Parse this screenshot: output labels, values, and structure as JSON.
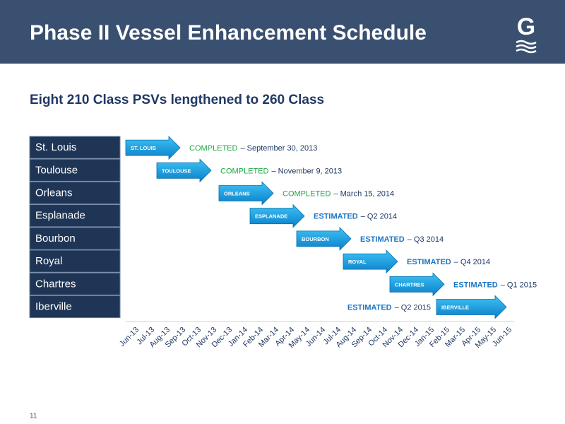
{
  "header": {
    "title": "Phase II Vessel Enhancement Schedule",
    "logo": "G"
  },
  "page_number": "11",
  "chart_data": {
    "type": "gantt",
    "subtitle": "Eight 210 Class PSVs lengthened to 260 Class",
    "categories": [
      "Jun-13",
      "Jul-13",
      "Aug-13",
      "Sep-13",
      "Oct-13",
      "Nov-13",
      "Dec-13",
      "Jan-14",
      "Feb-14",
      "Mar-14",
      "Apr-14",
      "May-14",
      "Jun-14",
      "Jul-14",
      "Aug-14",
      "Sep-14",
      "Oct-14",
      "Nov-14",
      "Dec-14",
      "Jan-15",
      "Feb-15",
      "Mar-15",
      "Apr-15",
      "May-15",
      "Jun-15"
    ],
    "status_colors": {
      "COMPLETED": "#1fa843",
      "ESTIMATED": "#1b75c4"
    },
    "tasks": [
      {
        "name": "St. Louis",
        "arrow_label": "ST. LOUIS",
        "start": "Jun-13",
        "end": "Sep-13",
        "status": "COMPLETED",
        "date": "– September 30, 2013",
        "label_side": "right"
      },
      {
        "name": "Toulouse",
        "arrow_label": "TOULOUSE",
        "start": "Aug-13",
        "end": "Nov-13",
        "status": "COMPLETED",
        "date": "– November 9, 2013",
        "label_side": "right"
      },
      {
        "name": "Orleans",
        "arrow_label": "ORLEANS",
        "start": "Dec-13",
        "end": "Mar-14",
        "status": "COMPLETED",
        "date": "– March 15, 2014",
        "label_side": "right"
      },
      {
        "name": "Esplanade",
        "arrow_label": "ESPLANADE",
        "start": "Feb-14",
        "end": "May-14",
        "status": "ESTIMATED",
        "date": "– Q2 2014",
        "label_side": "right"
      },
      {
        "name": "Bourbon",
        "arrow_label": "BOURBON",
        "start": "May-14",
        "end": "Aug-14",
        "status": "ESTIMATED",
        "date": "– Q3 2014",
        "label_side": "right"
      },
      {
        "name": "Royal",
        "arrow_label": "ROYAL",
        "start": "Aug-14",
        "end": "Nov-14",
        "status": "ESTIMATED",
        "date": "– Q4 2014",
        "label_side": "right"
      },
      {
        "name": "Chartres",
        "arrow_label": "CHARTRES",
        "start": "Nov-14",
        "end": "Feb-15",
        "status": "ESTIMATED",
        "date": "– Q1 2015",
        "label_side": "right"
      },
      {
        "name": "Iberville",
        "arrow_label": "IBERVILLE",
        "start": "Feb-15",
        "end": "Jun-15",
        "status": "ESTIMATED",
        "date": "– Q2 2015",
        "label_side": "left"
      }
    ]
  }
}
